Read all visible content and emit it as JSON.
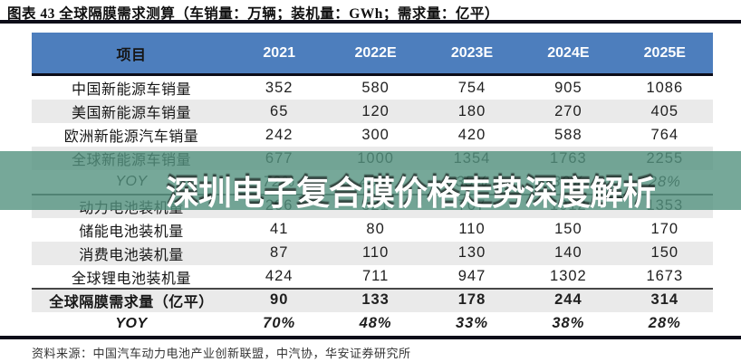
{
  "figure": {
    "title": "图表 43 全球隔膜需求测算（车销量：万辆；装机量：GWh；需求量：亿平）",
    "watermark": "深圳电子复合膜价格走势深度解析",
    "source": "资料来源：中国汽车动力电池产业创新联盟，中汽协，华安证券研究所"
  },
  "colors": {
    "header_bg": "#4d7ebd",
    "header_text": "#ffffff",
    "row_alt_bg": "#eaeaea",
    "dark_rule": "#0c0c18",
    "watermark_band": "rgba(84,146,128,0.8)",
    "watermark_text": "#ffffff"
  },
  "chart_data": {
    "type": "table",
    "title": "全球隔膜需求测算",
    "units": {
      "车销量": "万辆",
      "装机量": "GWh",
      "需求量": "亿平"
    },
    "columns": [
      "项目",
      "2021",
      "2022E",
      "2023E",
      "2024E",
      "2025E"
    ],
    "rows": [
      {
        "label": "中国新能源车销量",
        "values": [
          "352",
          "580",
          "754",
          "905",
          "1086"
        ]
      },
      {
        "label": "美国新能源车销量",
        "values": [
          "65",
          "120",
          "180",
          "270",
          "405"
        ]
      },
      {
        "label": "欧洲新能源汽车销量",
        "values": [
          "242",
          "300",
          "420",
          "588",
          "764"
        ]
      },
      {
        "label": "全球新能源车销量",
        "values": [
          "677",
          "1000",
          "1354",
          "1763",
          "2255"
        ]
      },
      {
        "label": "YOY",
        "values": [
          "72%",
          "48%",
          "35%",
          "30%",
          "28%"
        ]
      },
      {
        "label": "动力电池装机量",
        "values": [
          "296",
          "521",
          "707",
          "1012",
          "1353"
        ]
      },
      {
        "label": "储能电池装机量",
        "values": [
          "41",
          "80",
          "110",
          "150",
          "170"
        ]
      },
      {
        "label": "消费电池装机量",
        "values": [
          "87",
          "110",
          "130",
          "140",
          "150"
        ]
      },
      {
        "label": "全球锂电池装机量",
        "values": [
          "424",
          "711",
          "947",
          "1302",
          "1673"
        ]
      },
      {
        "label": "全球隔膜需求量（亿平）",
        "values": [
          "90",
          "133",
          "178",
          "244",
          "314"
        ]
      },
      {
        "label": "YOY",
        "values": [
          "70%",
          "48%",
          "33%",
          "38%",
          "28%"
        ]
      }
    ]
  }
}
